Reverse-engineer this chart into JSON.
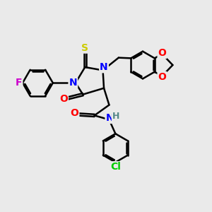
{
  "bg_color": "#eaeaea",
  "bond_color": "#000000",
  "bond_width": 1.8,
  "atom_colors": {
    "N": "#0000ff",
    "O": "#ff0000",
    "S": "#cccc00",
    "F": "#cc00cc",
    "Cl": "#00cc00",
    "H": "#558888",
    "C": "#000000"
  },
  "font_size": 9,
  "dbl_sep": 0.055
}
